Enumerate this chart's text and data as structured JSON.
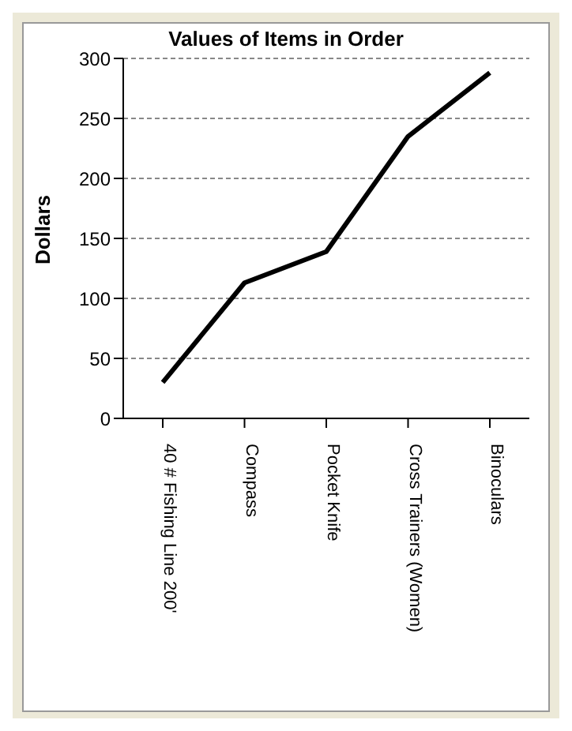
{
  "chart_data": {
    "type": "line",
    "title": "Values of Items in Order",
    "ylabel": "Dollars",
    "categories": [
      "40 # Fishing Line 200'",
      "Compass",
      "Pocket Knife",
      "Cross Trainers (Women)",
      "Binoculars"
    ],
    "series": [
      {
        "color": "#000000",
        "values": [
          30,
          113,
          139,
          235,
          288
        ]
      }
    ],
    "ylim": [
      0,
      300
    ],
    "yticks": [
      0,
      50,
      100,
      150,
      200,
      250,
      300
    ],
    "grid": "y",
    "marker": "none",
    "line_style": "solid"
  }
}
